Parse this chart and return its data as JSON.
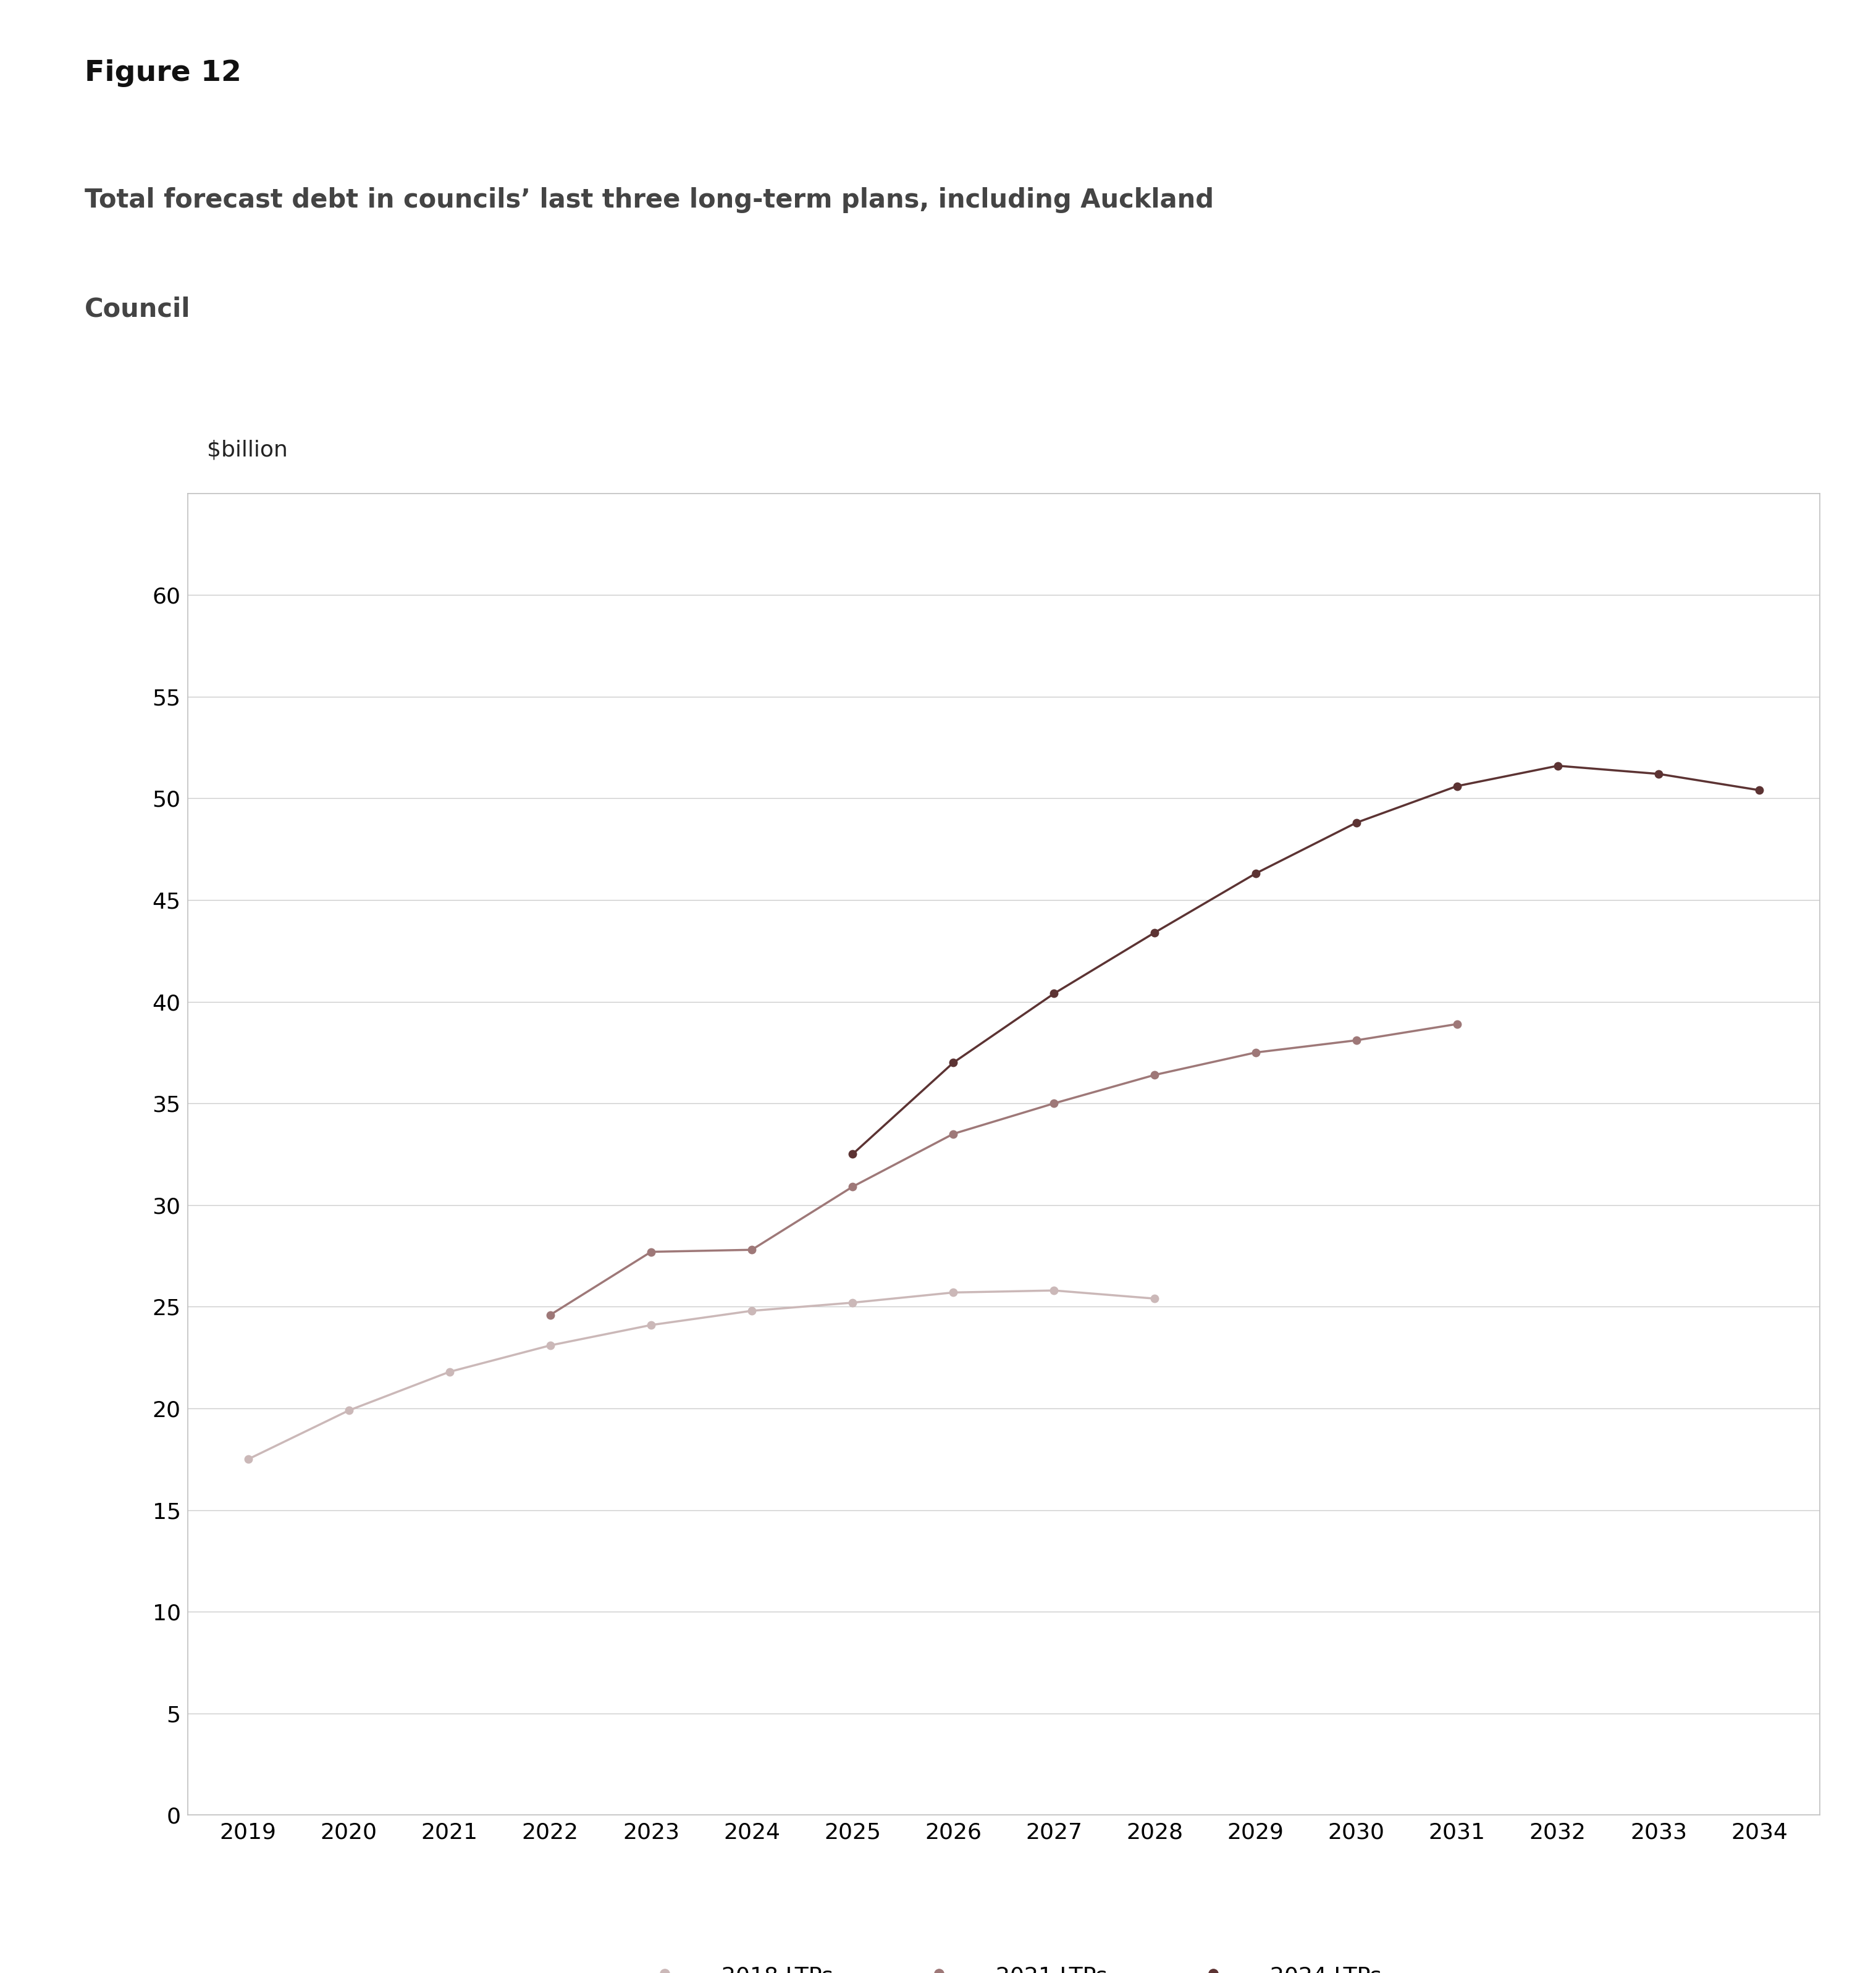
{
  "figure_label": "Figure 12",
  "subtitle": "Total forecast debt in councils’ last three long-term plans, including Auckland Council",
  "ylabel_inside": "$billion",
  "ylim": [
    0,
    65
  ],
  "yticks": [
    0,
    5,
    10,
    15,
    20,
    25,
    30,
    35,
    40,
    45,
    50,
    55,
    60
  ],
  "xlim_min": 2018.4,
  "xlim_max": 2034.6,
  "xticks": [
    2019,
    2020,
    2021,
    2022,
    2023,
    2024,
    2025,
    2026,
    2027,
    2028,
    2029,
    2030,
    2031,
    2032,
    2033,
    2034
  ],
  "series": {
    "2018 LTPs": {
      "x": [
        2019,
        2020,
        2021,
        2022,
        2023,
        2024,
        2025,
        2026,
        2027,
        2028
      ],
      "y": [
        17.5,
        19.9,
        21.8,
        23.1,
        24.1,
        24.8,
        25.2,
        25.7,
        25.8,
        25.4
      ],
      "color": "#cbb8b8"
    },
    "2021 LTPs": {
      "x": [
        2022,
        2023,
        2024,
        2025,
        2026,
        2027,
        2028,
        2029,
        2030,
        2031
      ],
      "y": [
        24.6,
        27.7,
        27.8,
        30.9,
        33.5,
        35.0,
        36.4,
        37.5,
        38.1,
        38.9
      ],
      "color": "#9e7878"
    },
    "2024 LTPs": {
      "x": [
        2025,
        2026,
        2027,
        2028,
        2029,
        2030,
        2031,
        2032,
        2033,
        2034
      ],
      "y": [
        32.5,
        37.0,
        40.4,
        43.4,
        46.3,
        48.8,
        50.6,
        51.6,
        51.2,
        50.4
      ],
      "color": "#5c3333"
    }
  },
  "background_color": "#ffffff",
  "plot_bg_color": "#ffffff",
  "grid_color": "#cccccc",
  "border_color": "#c0c0c0",
  "marker_size": 9,
  "line_width": 2.5,
  "tick_fontsize": 26,
  "ylabel_fontsize": 26,
  "legend_fontsize": 26,
  "figure_label_fontsize": 34,
  "subtitle_fontsize": 30
}
